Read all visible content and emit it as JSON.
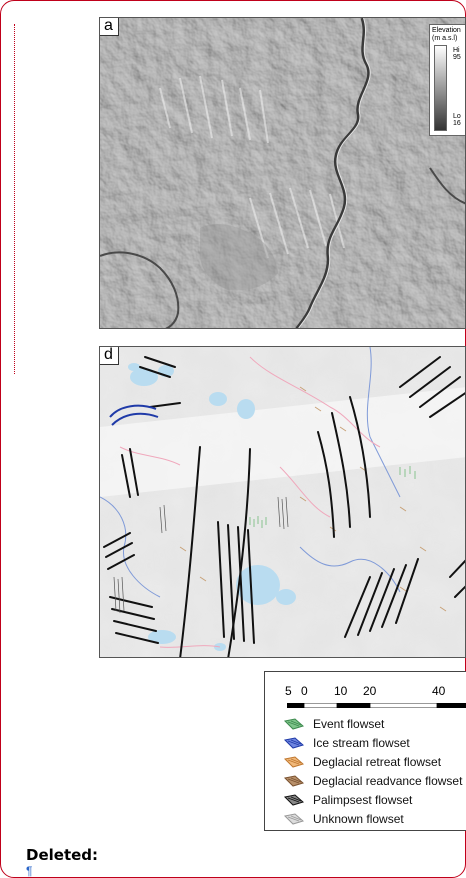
{
  "panels": {
    "a": {
      "letter": "a"
    },
    "d": {
      "letter": "d"
    }
  },
  "elevation_legend": {
    "title_line1": "Elevation",
    "title_line2": "(m a.s.l)",
    "high_label": "Hi",
    "high_value": "95",
    "low_label": "Lo",
    "low_value": "16"
  },
  "scale": {
    "ticks": [
      "5",
      "0",
      "10",
      "20",
      "40"
    ]
  },
  "legend": {
    "items": [
      {
        "label": "Event flowset",
        "icon": "event-flowset-icon",
        "color": "#7ec48a",
        "edge": "#3d8a4e"
      },
      {
        "label": "Ice stream flowset",
        "icon": "ice-stream-flowset-icon",
        "color": "#6f86e0",
        "edge": "#1f3aa8"
      },
      {
        "label": "Deglacial retreat flowset",
        "icon": "deglacial-retreat-flowset-icon",
        "color": "#f0b87a",
        "edge": "#c07830"
      },
      {
        "label": "Deglacial readvance flowset",
        "icon": "deglacial-readvance-flowset-icon",
        "color": "#b8906a",
        "edge": "#7a5230"
      },
      {
        "label": "Palimpsest flowset",
        "icon": "palimpsest-flowset-icon",
        "color": "#888888",
        "edge": "#111111"
      },
      {
        "label": "Unknown flowset",
        "icon": "unknown-flowset-icon",
        "color": "#dddddd",
        "edge": "#999999"
      }
    ]
  },
  "track_changes": {
    "deleted_label": "Deleted:",
    "pilcrow": "¶"
  },
  "colors": {
    "comment_border": "#c0001a",
    "pilcrow": "#2b66c9"
  }
}
